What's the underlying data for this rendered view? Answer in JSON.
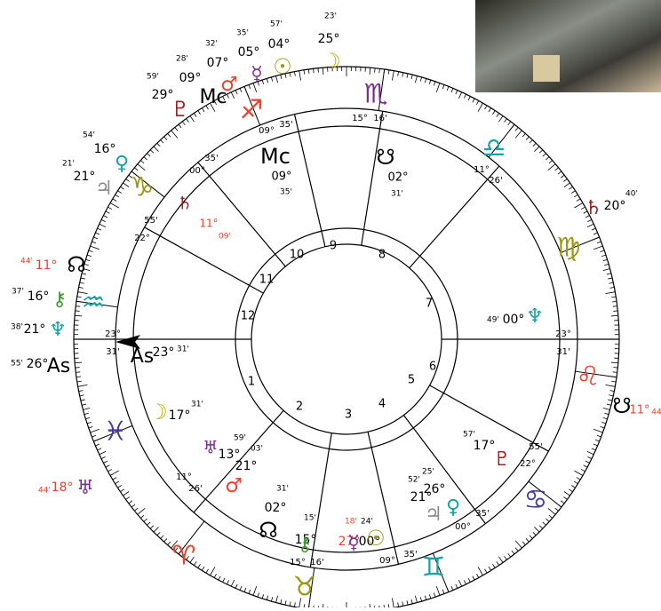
{
  "outer_labels": [
    "23'",
    "25°",
    "☽",
    "57'",
    "04°",
    "☉",
    "35'",
    "05°",
    "☿",
    "32'",
    "07°",
    "♂",
    "28'",
    "09°",
    "Mc",
    "59'",
    "29°",
    "♇",
    "54'",
    "16°",
    "♀",
    "21'",
    "21°",
    "♃",
    "44'",
    "11°",
    "☊",
    "37'",
    "16°",
    "⚷",
    "38'",
    "21°",
    "♆",
    "55'",
    "26°",
    "As",
    "44'",
    "18°",
    "♅",
    "♄",
    "20°",
    "40'",
    "☋",
    "11°",
    "44"
  ],
  "cusp_labels": [
    "15°",
    "16'",
    "09°",
    "35'",
    "11°",
    "26'",
    "35'",
    "00°",
    "55'",
    "22°",
    "23°",
    "31'",
    "23°",
    "31'",
    "55'",
    "22°",
    "35'",
    "00°",
    "09°",
    "35'",
    "15°",
    "16'",
    "11°",
    "26'"
  ],
  "house_numbers": [
    "1",
    "2",
    "3",
    "4",
    "5",
    "6",
    "7",
    "8",
    "9",
    "10",
    "11",
    "12"
  ],
  "signs": [
    "♏",
    "♎",
    "♍",
    "♌",
    "♋",
    "♊",
    "♉",
    "♈",
    "♓",
    "♒",
    "♑",
    "♐"
  ],
  "inner_labels": [
    "Mc",
    "09°",
    "35'",
    "☋",
    "02°",
    "31'",
    "♄",
    "11°",
    "09'",
    "♆",
    "00°",
    "49'",
    "As",
    "23°",
    "31'",
    "☽",
    "17°",
    "31'",
    "♇",
    "17°",
    "57'",
    "♅",
    "13°",
    "59'",
    "03'",
    "21°",
    "♂",
    "31'",
    "02°",
    "☊",
    "15'",
    "15°",
    "⚷",
    "18'",
    "27°",
    "☿",
    "24'",
    "00°",
    "☉",
    "25'",
    "52'",
    "21°",
    "26°",
    "♃",
    "♀"
  ]
}
